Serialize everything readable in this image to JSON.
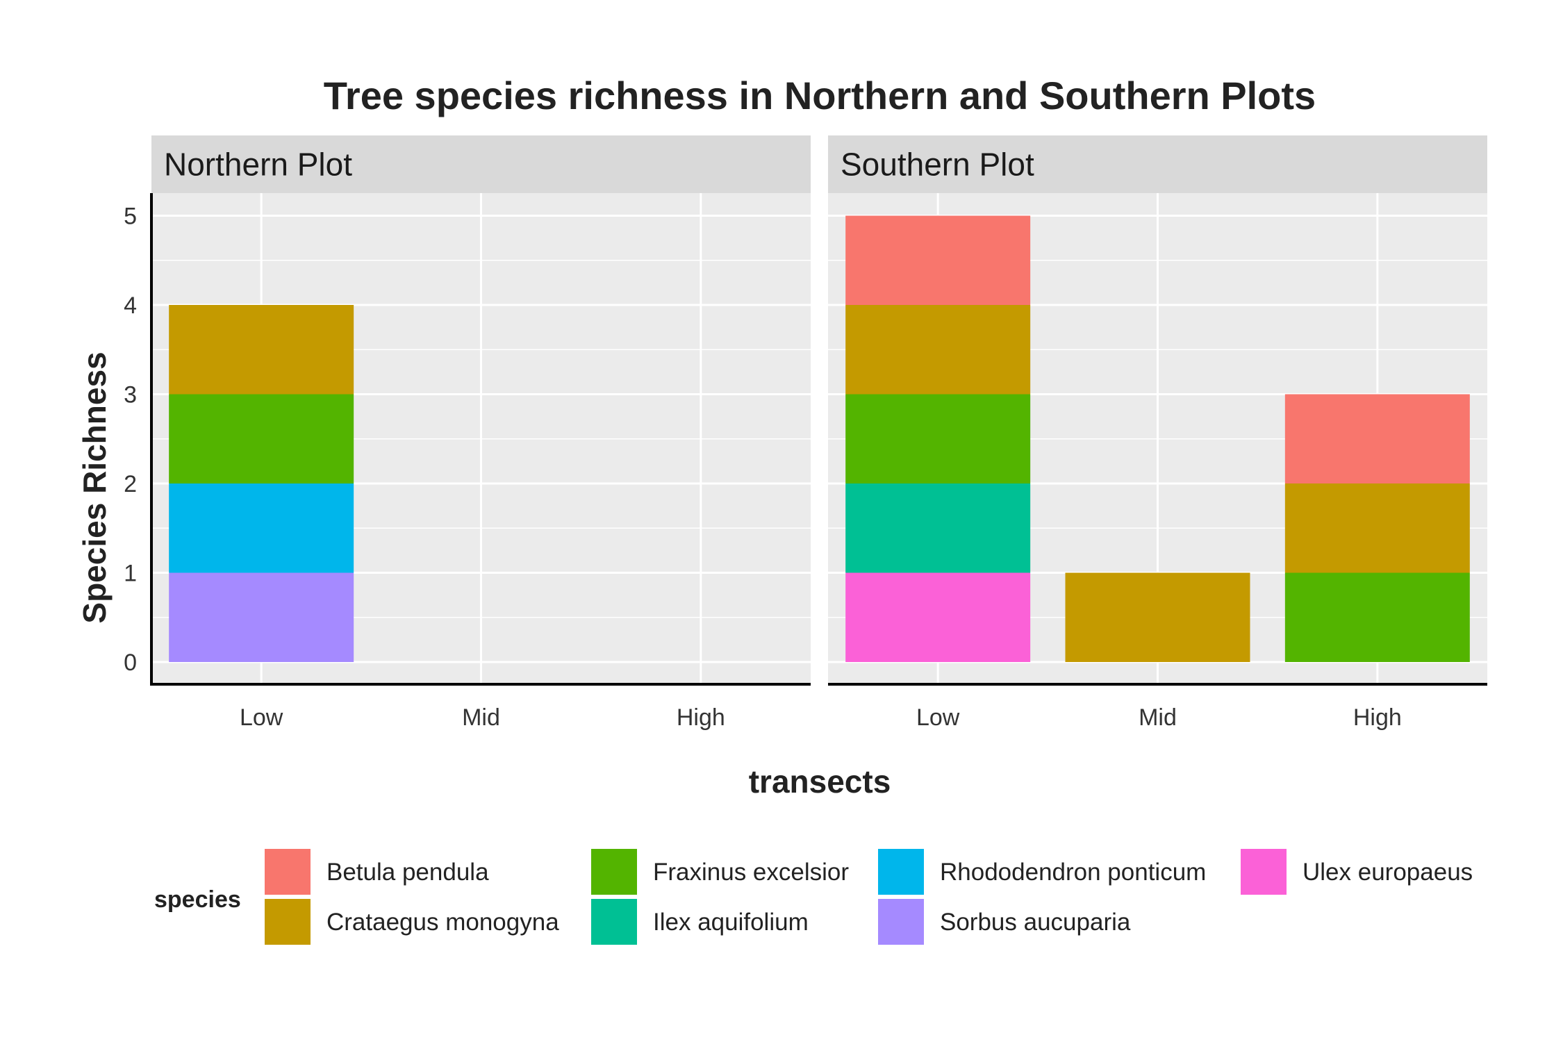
{
  "chart_data": {
    "type": "bar",
    "stacked": true,
    "title": "Tree species richness in Northern and Southern Plots",
    "xlabel": "transects",
    "ylabel": "Species Richness",
    "categories": [
      "Low",
      "Mid",
      "High"
    ],
    "ylim": [
      0,
      5
    ],
    "yticks": [
      "0",
      "1",
      "2",
      "3",
      "4",
      "5"
    ],
    "grid": true,
    "legend": {
      "title": "species",
      "position": "bottom",
      "items": [
        {
          "name": "Betula pendula",
          "color": "#F8766D"
        },
        {
          "name": "Crataegus monogyna",
          "color": "#C49A00"
        },
        {
          "name": "Fraxinus excelsior",
          "color": "#53B400"
        },
        {
          "name": "Ilex aquifolium",
          "color": "#00C094"
        },
        {
          "name": "Rhododendron ponticum",
          "color": "#00B6EB"
        },
        {
          "name": "Sorbus aucuparia",
          "color": "#A58AFF"
        },
        {
          "name": "Ulex europaeus",
          "color": "#FB61D7"
        }
      ]
    },
    "facets": [
      {
        "label": "Northern Plot",
        "stacks": {
          "Low": [
            {
              "species": "Sorbus aucuparia",
              "value": 1
            },
            {
              "species": "Rhododendron ponticum",
              "value": 1
            },
            {
              "species": "Fraxinus excelsior",
              "value": 1
            },
            {
              "species": "Crataegus monogyna",
              "value": 1
            }
          ],
          "Mid": [],
          "High": []
        }
      },
      {
        "label": "Southern Plot",
        "stacks": {
          "Low": [
            {
              "species": "Ulex europaeus",
              "value": 1
            },
            {
              "species": "Ilex aquifolium",
              "value": 1
            },
            {
              "species": "Fraxinus excelsior",
              "value": 1
            },
            {
              "species": "Crataegus monogyna",
              "value": 1
            },
            {
              "species": "Betula pendula",
              "value": 1
            }
          ],
          "Mid": [
            {
              "species": "Crataegus monogyna",
              "value": 1
            }
          ],
          "High": [
            {
              "species": "Fraxinus excelsior",
              "value": 1
            },
            {
              "species": "Crataegus monogyna",
              "value": 1
            },
            {
              "species": "Betula pendula",
              "value": 1
            }
          ]
        }
      }
    ],
    "colors": {
      "panel_background": "#EBEBEB",
      "strip_background": "#D9D9D9",
      "grid": "#FFFFFF"
    }
  }
}
